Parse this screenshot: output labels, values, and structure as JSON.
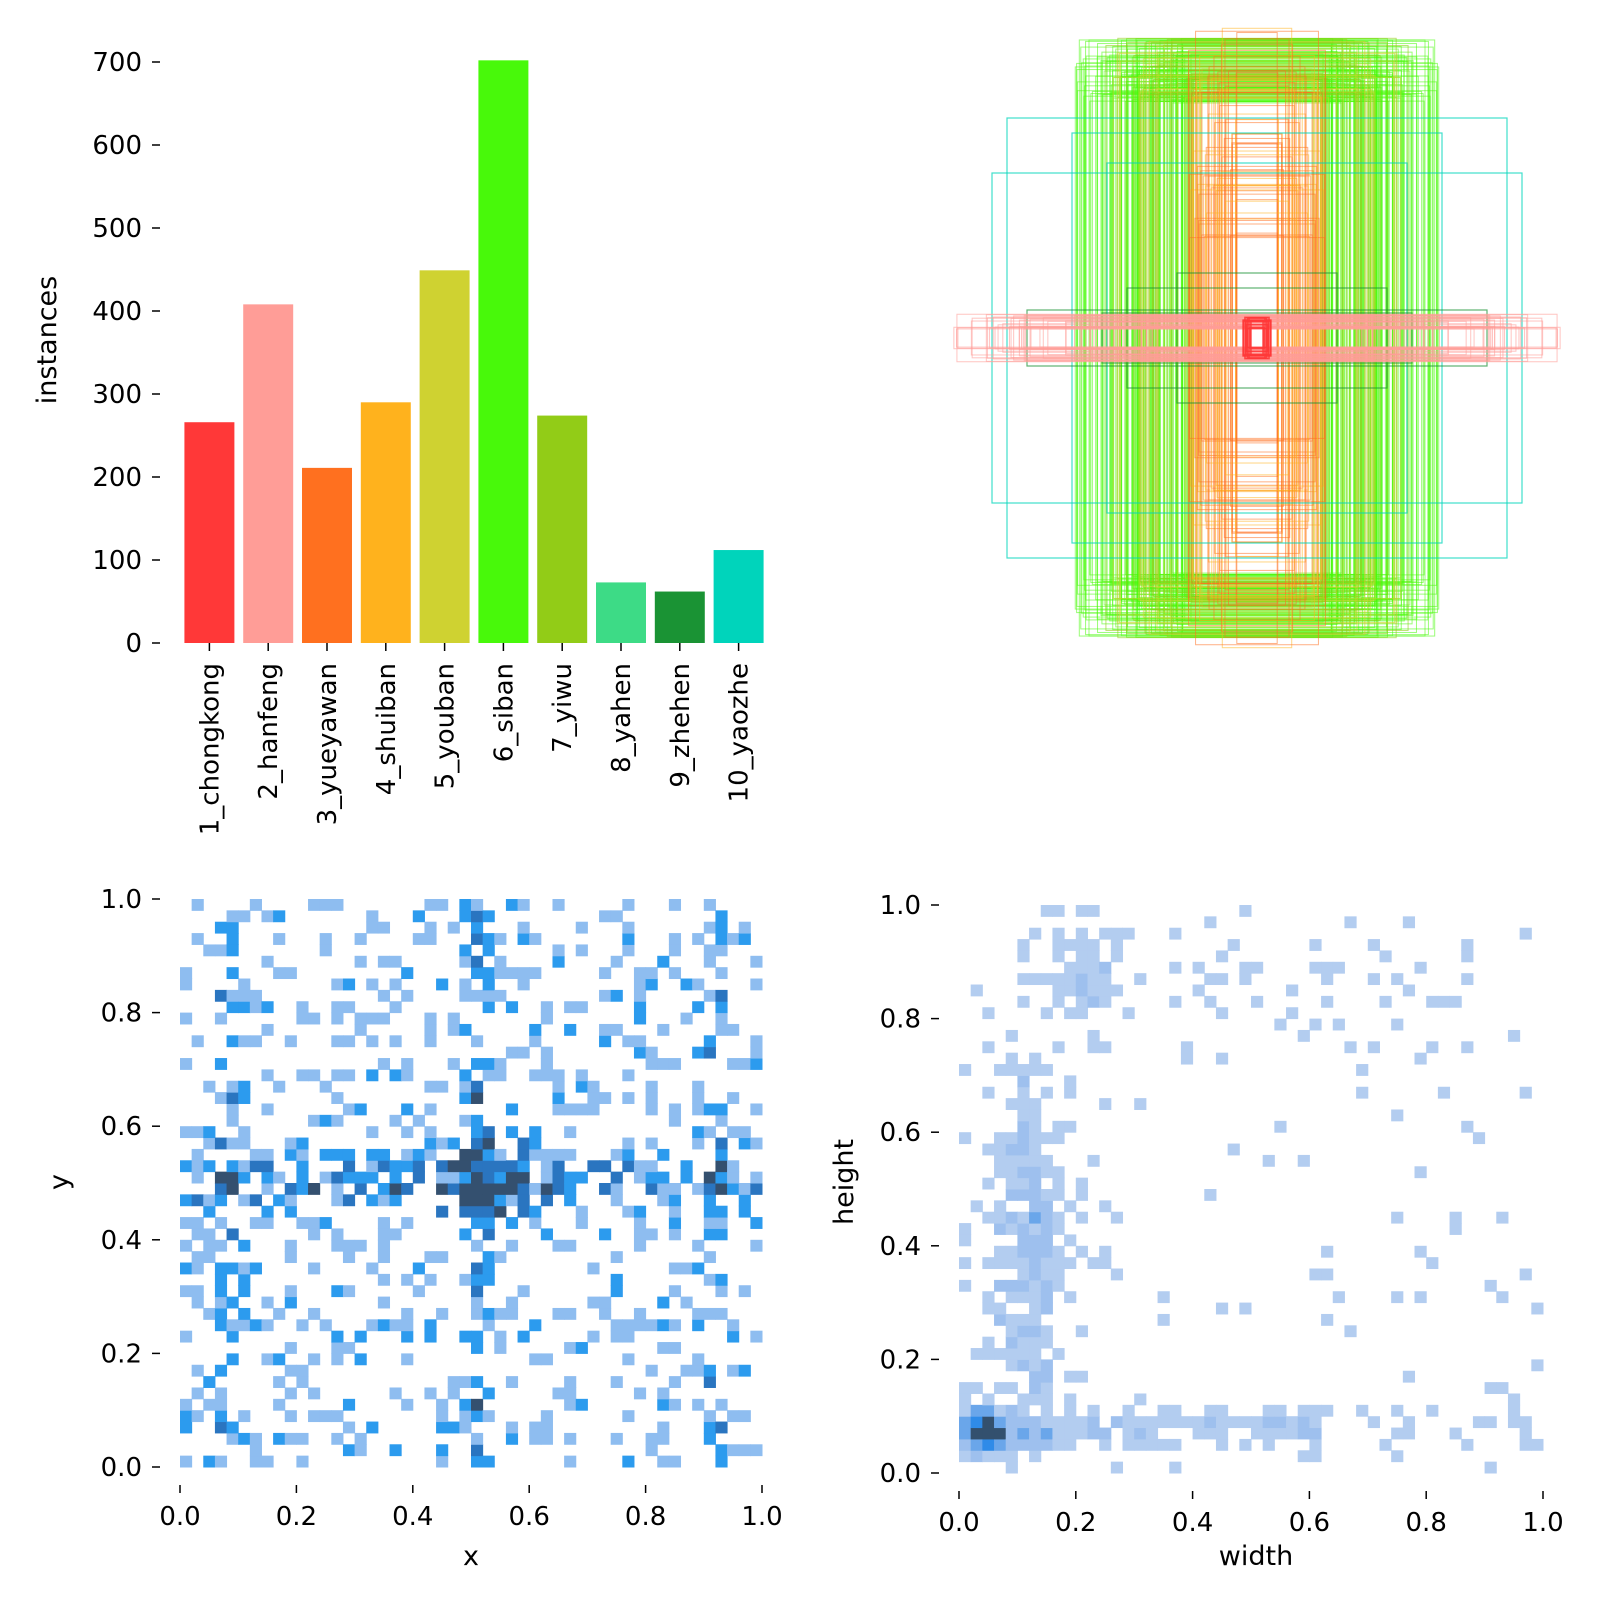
{
  "chart_data": [
    {
      "type": "bar",
      "ylabel": "instances",
      "ylim": [
        0,
        700
      ],
      "yticks": [
        0,
        100,
        200,
        300,
        400,
        500,
        600,
        700
      ],
      "categories": [
        "1_chongkong",
        "2_hanfeng",
        "3_yueyawan",
        "4_shuiban",
        "5_youban",
        "6_siban",
        "7_yiwu",
        "8_yahen",
        "9_zhehen",
        "10_yaozhe"
      ],
      "values": [
        266,
        408,
        211,
        290,
        449,
        702,
        274,
        73,
        62,
        112
      ],
      "colors": [
        "#FF3838",
        "#FF9D97",
        "#FF701F",
        "#FFB21D",
        "#CFD231",
        "#48F90A",
        "#92CC17",
        "#3DDB86",
        "#1A9334",
        "#00D4BB"
      ],
      "grid": false
    },
    {
      "type": "boxes",
      "description": "bounding boxes overlay",
      "box_classes": [
        "2_hanfeng",
        "6_siban",
        "7_yiwu",
        "3_yueyawan",
        "1_chongkong",
        "4_shuiban",
        "10_yaozhe",
        "9_zhehen"
      ]
    },
    {
      "type": "heatmap",
      "xlabel": "x",
      "ylabel": "y",
      "xlim": [
        0.0,
        1.0
      ],
      "ylim": [
        0.0,
        1.0
      ],
      "xticks": [
        "0.0",
        "0.2",
        "0.4",
        "0.6",
        "0.8",
        "1.0"
      ],
      "yticks": [
        "0.0",
        "0.2",
        "0.4",
        "0.6",
        "0.8",
        "1.0"
      ],
      "bins": 50,
      "color": "#2C9BEE"
    },
    {
      "type": "heatmap",
      "xlabel": "width",
      "ylabel": "height",
      "xlim": [
        0.0,
        1.0
      ],
      "ylim": [
        0.0,
        1.0
      ],
      "xticks": [
        "0.0",
        "0.2",
        "0.4",
        "0.6",
        "0.8",
        "1.0"
      ],
      "yticks": [
        "0.0",
        "0.2",
        "0.4",
        "0.6",
        "0.8",
        "1.0"
      ],
      "bins": 50,
      "color": "#A9C8F0"
    }
  ]
}
